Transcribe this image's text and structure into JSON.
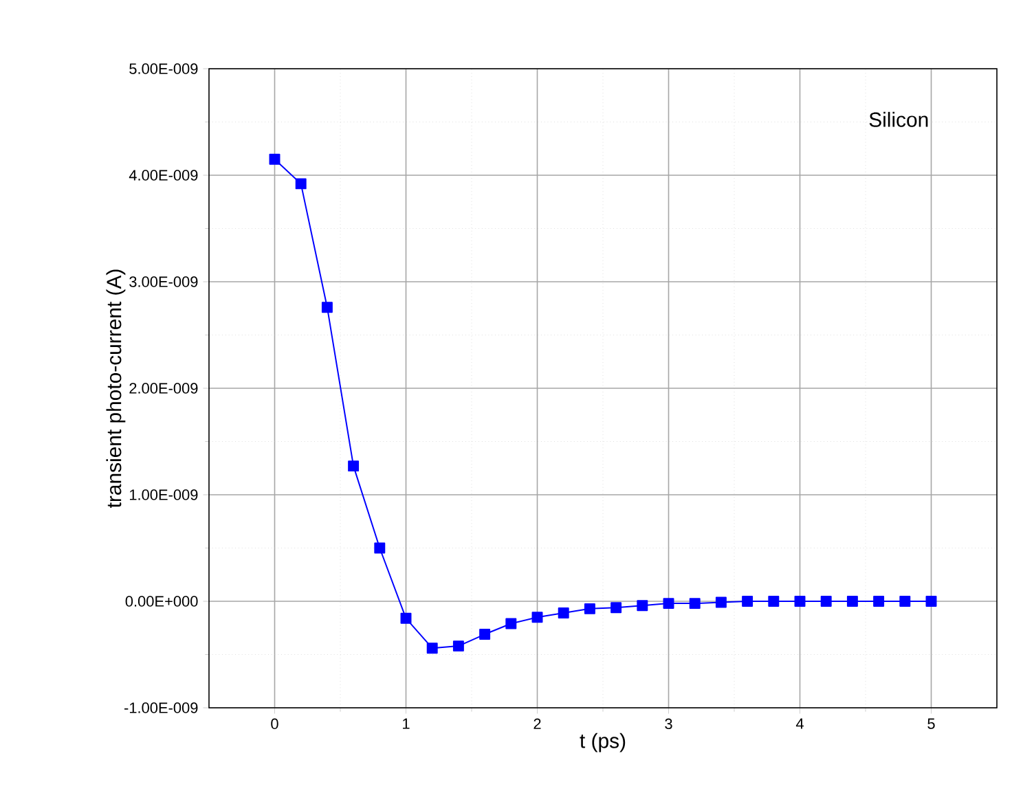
{
  "chart_data": {
    "type": "line",
    "xlabel": "t (ps)",
    "ylabel": "transient photo-current (A)",
    "annotations": [
      "Silicon"
    ],
    "x": [
      0,
      0.2,
      0.4,
      0.6,
      0.8,
      1.0,
      1.2,
      1.4,
      1.6,
      1.8,
      2.0,
      2.2,
      2.4,
      2.6,
      2.8,
      3.0,
      3.2,
      3.4,
      3.6,
      3.8,
      4.0,
      4.2,
      4.4,
      4.6,
      4.8,
      5.0
    ],
    "series": [
      {
        "color": "#0000ff",
        "values": [
          4.15e-09,
          3.92e-09,
          2.76e-09,
          1.27e-09,
          5e-10,
          -1.6e-10,
          -4.4e-10,
          -4.2e-10,
          -3.1e-10,
          -2.1e-10,
          -1.5e-10,
          -1.1e-10,
          -7e-11,
          -6e-11,
          -4e-11,
          -2e-11,
          -2e-11,
          -1e-11,
          0,
          0,
          0,
          0,
          0,
          0,
          0,
          0
        ]
      }
    ],
    "xlim": [
      -0.5,
      5.5
    ],
    "ylim": [
      -1e-09,
      5e-09
    ],
    "xticks": [
      0,
      1,
      2,
      3,
      4,
      5
    ],
    "yticks": [
      {
        "value": -1e-09,
        "label": "-1.00E-009"
      },
      {
        "value": 0,
        "label": "0.00E+000"
      },
      {
        "value": 1e-09,
        "label": "1.00E-009"
      },
      {
        "value": 2e-09,
        "label": "2.00E-009"
      },
      {
        "value": 3e-09,
        "label": "3.00E-009"
      },
      {
        "value": 4e-09,
        "label": "4.00E-009"
      },
      {
        "value": 5e-09,
        "label": "5.00E-009"
      }
    ],
    "grid": true,
    "marker": "square",
    "line_style": "solid"
  }
}
